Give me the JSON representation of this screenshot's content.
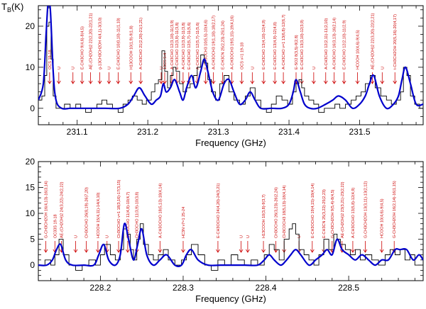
{
  "chart_data": [
    {
      "type": "line",
      "panel": "top",
      "xlabel": "Frequency (GHz)",
      "ylabel": "T",
      "ylabel_sub": "B",
      "ylabel_unit": "(K)",
      "xlim": [
        231.045,
        231.59
      ],
      "ylim": [
        -4,
        25
      ],
      "xticks": [
        231.1,
        231.2,
        231.3,
        231.4,
        231.5
      ],
      "xtick_labels": [
        "231.1",
        "231.2",
        "231.3",
        "231.4",
        "231.5"
      ],
      "yticks": [
        0,
        10,
        20
      ],
      "ytick_labels": [
        "0",
        "10",
        "20"
      ],
      "series": [
        {
          "name": "observed",
          "style": "histogram",
          "color": "#000000",
          "x": [
            231.045,
            231.05,
            231.054,
            231.057,
            231.06,
            231.063,
            231.066,
            231.07,
            231.075,
            231.082,
            231.09,
            231.098,
            231.105,
            231.112,
            231.12,
            231.128,
            231.135,
            231.142,
            231.15,
            231.158,
            231.165,
            231.172,
            231.178,
            231.185,
            231.192,
            231.198,
            231.205,
            231.21,
            231.215,
            231.22,
            231.224,
            231.228,
            231.232,
            231.236,
            231.24,
            231.245,
            231.25,
            231.255,
            231.26,
            231.265,
            231.27,
            231.275,
            231.28,
            231.285,
            231.29,
            231.296,
            231.302,
            231.308,
            231.315,
            231.322,
            231.33,
            231.338,
            231.345,
            231.352,
            231.36,
            231.368,
            231.375,
            231.382,
            231.39,
            231.398,
            231.405,
            231.41,
            231.414,
            231.418,
            231.422,
            231.428,
            231.435,
            231.442,
            231.45,
            231.457,
            231.465,
            231.472,
            231.48,
            231.488,
            231.495,
            231.502,
            231.508,
            231.515,
            231.522,
            231.53,
            231.538,
            231.545,
            231.552,
            231.558,
            231.562,
            231.567,
            231.572,
            231.578,
            231.585,
            231.59
          ],
          "y": [
            2,
            3,
            8,
            20,
            21,
            12,
            3,
            0,
            0,
            1,
            0,
            1,
            0,
            -1,
            0,
            1,
            2,
            1,
            0,
            -1,
            1,
            2,
            3,
            2,
            1,
            2,
            4,
            6,
            7,
            14,
            9,
            5,
            8,
            10,
            9,
            6,
            4,
            5,
            6,
            8,
            10,
            13,
            11,
            7,
            4,
            2,
            6,
            8,
            4,
            2,
            1,
            3,
            5,
            2,
            0,
            -1,
            1,
            3,
            2,
            1,
            4,
            6,
            7,
            5,
            3,
            2,
            1,
            -1,
            0,
            0,
            1,
            0,
            1,
            2,
            3,
            4,
            6,
            8,
            5,
            3,
            2,
            1,
            2,
            4,
            10,
            8,
            3,
            1,
            0,
            2
          ]
        },
        {
          "name": "model",
          "style": "line",
          "color": "#0000cc",
          "x": [
            231.045,
            231.052,
            231.056,
            231.059,
            231.062,
            231.066,
            231.07,
            231.078,
            231.09,
            231.1,
            231.112,
            231.125,
            231.14,
            231.16,
            231.172,
            231.18,
            231.188,
            231.196,
            231.205,
            231.212,
            231.218,
            231.222,
            231.226,
            231.232,
            231.238,
            231.245,
            231.25,
            231.255,
            231.262,
            231.268,
            231.275,
            231.28,
            231.285,
            231.292,
            231.3,
            231.308,
            231.315,
            231.322,
            231.33,
            231.338,
            231.345,
            231.352,
            231.36,
            231.375,
            231.39,
            231.4,
            231.406,
            231.41,
            231.416,
            231.422,
            231.43,
            231.44,
            231.452,
            231.462,
            231.47,
            231.48,
            231.49,
            231.5,
            231.508,
            231.514,
            231.52,
            231.528,
            231.538,
            231.548,
            231.555,
            231.56,
            231.565,
            231.572,
            231.58,
            231.59
          ],
          "y": [
            2,
            6,
            18,
            26,
            24,
            9,
            2,
            0,
            0,
            0,
            0,
            0,
            0,
            0,
            1,
            3,
            5,
            3,
            1,
            2,
            3,
            6,
            4,
            5,
            7,
            4,
            2,
            5,
            8,
            5,
            9,
            12,
            9,
            4,
            2,
            6,
            7,
            4,
            1,
            2,
            4,
            2,
            0,
            0,
            0,
            1,
            4,
            7,
            4,
            1,
            0,
            0,
            1,
            2,
            3,
            2,
            0,
            1,
            3,
            6,
            8,
            3,
            0,
            1,
            3,
            7,
            10,
            6,
            1,
            1
          ]
        }
      ],
      "annotations": [
        {
          "x": 231.061,
          "label": "OCS 19-18"
        },
        {
          "x": 231.074,
          "label": "U"
        },
        {
          "x": 231.094,
          "label": "U"
        },
        {
          "x": 231.107,
          "label": "E-CH3CHO 9(4,6)-8(4,5)"
        },
        {
          "x": 231.119,
          "label": "AE-(CH2OH)2 22(2,20)-22(1,21)"
        },
        {
          "x": 231.132,
          "label": "g-13CH3CH2OH 4(4,1)-3(3,0)"
        },
        {
          "x": 231.145,
          "label": "U"
        },
        {
          "x": 231.158,
          "label": "E-CH3CHO 10(0,10)-11(1,10)"
        },
        {
          "x": 231.176,
          "label": "H13COOH 10(1,9)-9(1,8)"
        },
        {
          "x": 231.19,
          "label": "A-CH3CHO 21(2,20)-21(1,21)"
        },
        {
          "x": 231.219,
          "label": "U"
        },
        {
          "x": 231.224,
          "label": "13CS 5-4"
        },
        {
          "x": 231.234,
          "label": "A-CH3CHO 12(3,10)-11(3,9)"
        },
        {
          "x": 231.241,
          "label": "E-CH3CHO 12(3,9)-11(3,8)"
        },
        {
          "x": 231.25,
          "label": "A-CH3CHO 12(3,9)-11(3,8)"
        },
        {
          "x": 231.258,
          "label": "E-CH3CHO 12(5,7)-11(5,6)"
        },
        {
          "x": 231.27,
          "label": "A-CH3CHO 12(5,7)-11(5,6)"
        },
        {
          "x": 231.282,
          "label": "E-CH3OCH3 10(5,5)-10(4,6)"
        },
        {
          "x": 231.293,
          "label": "A-CH3OCH3 19(1,18)-18(2,17)"
        },
        {
          "x": 231.306,
          "label": "E-CH3CN 25(2,23)-25(1,24)"
        },
        {
          "x": 231.319,
          "label": "A-CH3OCH3 19(5,15)-19(4,16)"
        },
        {
          "x": 231.333,
          "label": "OCS v=1 19-18"
        },
        {
          "x": 231.348,
          "label": "U"
        },
        {
          "x": 231.364,
          "label": "E-CH3CHO 13(4,10)-12(4,9)"
        },
        {
          "x": 231.38,
          "label": "E-CH3CHO 13(4,9)-12(4,8)"
        },
        {
          "x": 231.392,
          "label": "A-CH3CHO v=1 13(6,8)-12(6,7)"
        },
        {
          "x": 231.41,
          "label": "E-SO2 8(3,5)-9(2,8)"
        },
        {
          "x": 231.418,
          "label": "E-CH3CHO 13(3,10)-12(3,9)"
        },
        {
          "x": 231.435,
          "label": "U"
        },
        {
          "x": 231.452,
          "label": "A-CH3CHO 12(2,11)-11(2,10)"
        },
        {
          "x": 231.464,
          "label": "A-CH3CHO 16(3,13)-16(2,14)"
        },
        {
          "x": 231.478,
          "label": "E-CH3CHO 12(2,10)-11(2,9)"
        },
        {
          "x": 231.497,
          "label": "HCOOH 10(4,6)-9(4,5)"
        },
        {
          "x": 231.518,
          "label": "AE-(CH2OH)2 22(3,20)-22(2,21)"
        },
        {
          "x": 231.532,
          "label": "U"
        },
        {
          "x": 231.55,
          "label": "t-CH3CH2OH 20(5,16)-20(4,17)"
        }
      ]
    },
    {
      "type": "line",
      "panel": "bottom",
      "xlabel": "Frequency (GHz)",
      "ylabel": "",
      "xlim": [
        228.125,
        228.59
      ],
      "ylim": [
        -3,
        20
      ],
      "xticks": [
        228.2,
        228.3,
        228.4,
        228.5
      ],
      "xtick_labels": [
        "228.2",
        "228.3",
        "228.4",
        "228.5"
      ],
      "yticks": [
        0,
        5,
        10,
        15,
        20
      ],
      "ytick_labels": [
        "0",
        "5",
        "10",
        "15",
        "20"
      ],
      "series": [
        {
          "name": "observed",
          "style": "histogram",
          "color": "#000000",
          "x": [
            228.125,
            228.133,
            228.14,
            228.145,
            228.15,
            228.155,
            228.162,
            228.17,
            228.178,
            228.186,
            228.194,
            228.2,
            228.205,
            228.212,
            228.218,
            228.224,
            228.228,
            228.232,
            228.236,
            228.24,
            228.244,
            228.248,
            228.252,
            228.258,
            228.264,
            228.27,
            228.276,
            228.282,
            228.29,
            228.298,
            228.304,
            228.31,
            228.318,
            228.326,
            228.334,
            228.342,
            228.35,
            228.358,
            228.366,
            228.374,
            228.382,
            228.39,
            228.398,
            228.404,
            228.41,
            228.416,
            228.422,
            228.428,
            228.432,
            228.436,
            228.44,
            228.446,
            228.452,
            228.458,
            228.464,
            228.47,
            228.476,
            228.482,
            228.486,
            228.49,
            228.496,
            228.502,
            228.508,
            228.514,
            228.52,
            228.528,
            228.536,
            228.544,
            228.55,
            228.556,
            228.562,
            228.568,
            228.574,
            228.58,
            228.59
          ],
          "y": [
            0,
            1,
            0,
            2,
            5,
            2,
            0,
            -1,
            0,
            1,
            0,
            2,
            4,
            2,
            1,
            3,
            7,
            6,
            3,
            1,
            5,
            8,
            4,
            2,
            1,
            2,
            3,
            1,
            0,
            1,
            2,
            4,
            2,
            0,
            -1,
            1,
            0,
            2,
            1,
            0,
            1,
            0,
            2,
            4,
            3,
            1,
            5,
            7,
            8,
            6,
            3,
            2,
            1,
            0,
            2,
            5,
            3,
            6,
            5,
            4,
            3,
            2,
            3,
            1,
            2,
            1,
            0,
            2,
            3,
            2,
            3,
            1,
            2,
            0,
            1
          ]
        },
        {
          "name": "model",
          "style": "line",
          "color": "#0000cc",
          "x": [
            228.125,
            228.135,
            228.142,
            228.147,
            228.152,
            228.158,
            228.166,
            228.18,
            228.192,
            228.198,
            228.204,
            228.21,
            228.218,
            228.224,
            228.229,
            228.234,
            228.24,
            228.245,
            228.25,
            228.256,
            228.264,
            228.272,
            228.28,
            228.29,
            228.298,
            228.304,
            228.31,
            228.318,
            228.33,
            228.345,
            228.36,
            228.375,
            228.39,
            228.398,
            228.404,
            228.41,
            228.418,
            228.425,
            228.43,
            228.436,
            228.442,
            228.452,
            228.46,
            228.468,
            228.474,
            228.48,
            228.486,
            228.492,
            228.5,
            228.508,
            228.516,
            228.524,
            228.532,
            228.54,
            228.548,
            228.556,
            228.562,
            228.57,
            228.578,
            228.585,
            228.59
          ],
          "y": [
            0,
            0,
            1,
            3,
            4,
            1,
            0,
            0,
            0,
            2,
            4,
            1,
            0,
            2,
            8,
            5,
            1,
            4,
            7,
            2,
            0,
            1,
            2,
            0,
            0,
            2,
            3,
            1,
            0,
            0,
            0,
            0,
            0,
            1,
            2,
            1,
            0,
            1,
            2,
            3,
            2,
            0,
            1,
            2,
            3,
            2,
            5,
            3,
            2,
            1,
            2,
            1,
            0,
            1,
            1,
            3,
            3,
            3,
            1,
            2,
            1
          ]
        }
      ],
      "annotations": [
        {
          "x": 228.134,
          "label": "G-CH3CH2OH 16(4,13)-16(3,14)"
        },
        {
          "x": 228.145,
          "label": "OC33S 19-18"
        },
        {
          "x": 228.153,
          "label": "AE-(CH2OH)2 24(3,22)-24(2,22)"
        },
        {
          "x": 228.17,
          "label": "U"
        },
        {
          "x": 228.183,
          "label": "CH3OCHO 26(8,19)-26(7,20)"
        },
        {
          "x": 228.197,
          "label": "HCOOH 15(4,11)-14(4,10)"
        },
        {
          "x": 228.208,
          "label": "U"
        },
        {
          "x": 228.222,
          "label": "CH3OCHO v=1 18(3,16)-17(3,15)"
        },
        {
          "x": 228.233,
          "label": "CH3OCHO 11(4,8)-10(4,7)"
        },
        {
          "x": 228.244,
          "label": "CH3OCHO 11(3,9)-10(3,8)"
        },
        {
          "x": 228.272,
          "label": "A-CH3OCHO 18(5,13)-18(4,14)"
        },
        {
          "x": 228.3,
          "label": "HC3N v7=1 25-24"
        },
        {
          "x": 228.342,
          "label": "E-CH3OCHO 24(4,20)-24(3,21)"
        },
        {
          "x": 228.37,
          "label": "U"
        },
        {
          "x": 228.378,
          "label": "U"
        },
        {
          "x": 228.397,
          "label": "H13COOH 10(3,8)-9(3,7)"
        },
        {
          "x": 228.412,
          "label": "CH3OCHO 26(3,23)-26(2,24)"
        },
        {
          "x": 228.422,
          "label": "CH3COCH3 18(5,13)-18(4,14)"
        },
        {
          "x": 228.44,
          "label": "U"
        },
        {
          "x": 228.456,
          "label": "E-CH3OCHO 19(4,15)-18(4,14)"
        },
        {
          "x": 228.47,
          "label": "E-CH3CN 25(3,22)-25(2,23)"
        },
        {
          "x": 228.48,
          "label": "G-CH3CH2OH 9(5,4)-8(4,5)"
        },
        {
          "x": 228.492,
          "label": "AE-(CH2OH)2 23(3,21)-23(2,22)"
        },
        {
          "x": 228.505,
          "label": "A-CH3OCHO 13(5,8)-12(4,9)"
        },
        {
          "x": 228.52,
          "label": "G-CH3CH2OH 13(3,11)-13(2,12)"
        },
        {
          "x": 228.54,
          "label": "HCOOH 10(4,6)-9(4,5)"
        },
        {
          "x": 228.555,
          "label": "G-CH3CH2OH 16(2,14)-16(1,15)"
        }
      ]
    }
  ]
}
